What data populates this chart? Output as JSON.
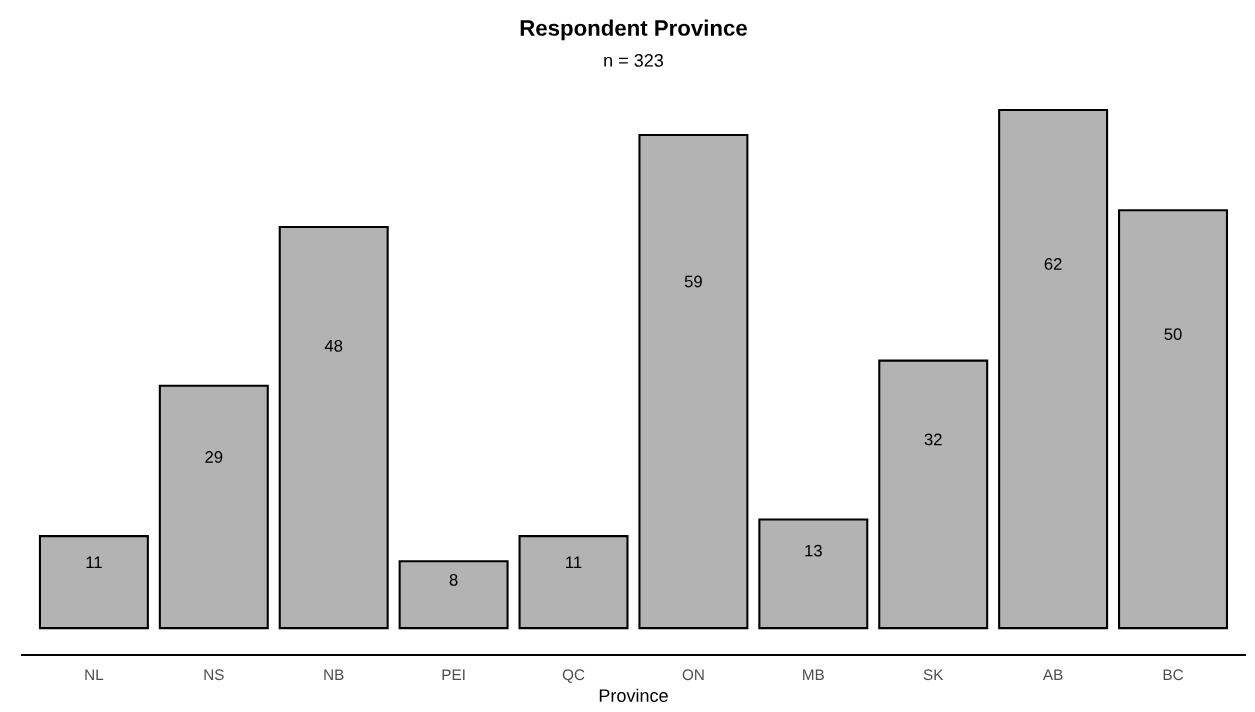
{
  "chart_data": {
    "type": "bar",
    "title": "Respondent Province",
    "subtitle": "n = 323",
    "xlabel": "Province",
    "categories": [
      "NL",
      "NS",
      "NB",
      "PEI",
      "QC",
      "ON",
      "MB",
      "SK",
      "AB",
      "BC"
    ],
    "values": [
      11,
      29,
      48,
      8,
      11,
      59,
      13,
      32,
      62,
      50
    ],
    "color": "#b3b3b3",
    "data_labels": true,
    "grid": false,
    "tick_labels": "x"
  }
}
